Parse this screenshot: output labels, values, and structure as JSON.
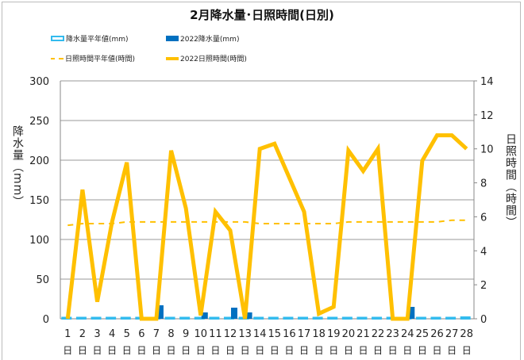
{
  "chart_data": {
    "type": "bar+line",
    "title": "2月降水量･日照時間(日別)",
    "categories": [
      "1",
      "2",
      "3",
      "4",
      "5",
      "6",
      "7",
      "8",
      "9",
      "10",
      "11",
      "12",
      "13",
      "14",
      "15",
      "16",
      "17",
      "18",
      "19",
      "20",
      "21",
      "22",
      "23",
      "24",
      "25",
      "26",
      "27",
      "28"
    ],
    "x_suffix": "日",
    "ylabel_left": "降水量（mm）",
    "ylabel_right": "日照時間（時間）",
    "ylim_left": [
      0,
      300
    ],
    "ylim_right": [
      0,
      14
    ],
    "yticks_left": [
      "0",
      "50",
      "100",
      "150",
      "200",
      "250",
      "300"
    ],
    "yticks_right": [
      "0",
      "2",
      "4",
      "6",
      "8",
      "10",
      "12",
      "14"
    ],
    "series": [
      {
        "name": "降水量平年値(mm)",
        "type": "bar",
        "axis": "left",
        "color": "#33bbee",
        "values": [
          2.5,
          2.5,
          2.5,
          2.5,
          2.5,
          2.5,
          2.5,
          2.5,
          2.5,
          2.5,
          2.5,
          2.5,
          2.5,
          2.5,
          2.5,
          2.5,
          2.5,
          2.5,
          2.5,
          2.5,
          2.5,
          2.5,
          2.5,
          2.5,
          2.5,
          2.5,
          2.5,
          3
        ]
      },
      {
        "name": "2022降水量(mm)",
        "type": "bar",
        "axis": "left",
        "color": "#0070c0",
        "values": [
          0,
          0,
          0,
          0,
          0,
          1,
          17,
          0,
          0,
          8,
          0,
          14,
          8,
          0,
          0,
          0,
          0,
          0,
          0,
          0,
          0,
          0,
          1,
          15,
          0,
          0,
          0,
          0
        ]
      },
      {
        "name": "日照時間平年値(時間)",
        "type": "line-dashed",
        "axis": "right",
        "color": "#ffc000",
        "values": [
          5.5,
          5.6,
          5.6,
          5.6,
          5.7,
          5.7,
          5.7,
          5.7,
          5.7,
          5.7,
          5.7,
          5.7,
          5.7,
          5.6,
          5.6,
          5.6,
          5.6,
          5.6,
          5.6,
          5.7,
          5.7,
          5.7,
          5.7,
          5.7,
          5.7,
          5.7,
          5.8,
          5.8
        ]
      },
      {
        "name": "2022日照時間(時間)",
        "type": "line",
        "axis": "right",
        "color": "#ffc000",
        "values": [
          0,
          7.6,
          1.0,
          5.7,
          9.2,
          0,
          0,
          9.9,
          6.5,
          0.2,
          6.3,
          5.2,
          0,
          10.0,
          10.3,
          8.3,
          6.3,
          0.3,
          0.7,
          9.9,
          8.7,
          10.0,
          0,
          0,
          9.3,
          10.8,
          10.8,
          10.0
        ]
      }
    ],
    "grid": true,
    "legend": "top-left"
  }
}
